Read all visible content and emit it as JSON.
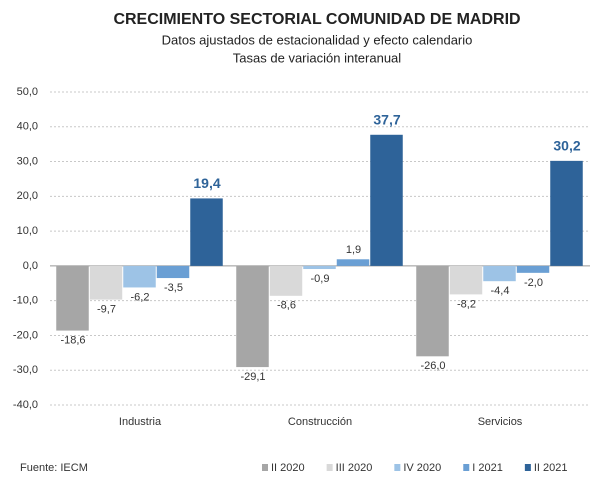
{
  "chart_data": {
    "type": "bar",
    "title": "CRECIMIENTO SECTORIAL COMUNIDAD DE MADRID",
    "subtitle": [
      "Datos ajustados de estacionalidad y efecto calendario",
      "Tasas de variación interanual"
    ],
    "source": "Fuente: IECM",
    "categories": [
      "Industria",
      "Construcción",
      "Servicios"
    ],
    "series": [
      {
        "name": "II 2020",
        "color": "#a6a6a6",
        "values": [
          -18.6,
          -29.1,
          -26.0
        ],
        "value_labels": [
          "-18,6",
          "-29,1",
          "-26,0"
        ]
      },
      {
        "name": "III 2020",
        "color": "#d9d9d9",
        "values": [
          -9.7,
          -8.6,
          -8.2
        ],
        "value_labels": [
          "-9,7",
          "-8,6",
          "-8,2"
        ]
      },
      {
        "name": "IV 2020",
        "color": "#9dc3e6",
        "values": [
          -6.2,
          -0.9,
          -4.4
        ],
        "value_labels": [
          "-6,2",
          "-0,9",
          "-4,4"
        ]
      },
      {
        "name": "I 2021",
        "color": "#6a9fd4",
        "values": [
          -3.5,
          1.9,
          -2.0
        ],
        "value_labels": [
          "-3,5",
          "1,9",
          "-2,0"
        ]
      },
      {
        "name": "II 2021",
        "color": "#2e6399",
        "values": [
          19.4,
          37.7,
          30.2
        ],
        "value_labels": [
          "19,4",
          "37,7",
          "30,2"
        ]
      }
    ],
    "ylim": [
      -40,
      50
    ],
    "yticks": [
      {
        "value": -40,
        "label": "-40,0"
      },
      {
        "value": -30,
        "label": "-30,0"
      },
      {
        "value": -20,
        "label": "-20,0"
      },
      {
        "value": -10,
        "label": "-10,0"
      },
      {
        "value": 0,
        "label": "0,0"
      },
      {
        "value": 10,
        "label": "10,0"
      },
      {
        "value": 20,
        "label": "20,0"
      },
      {
        "value": 30,
        "label": "30,0"
      },
      {
        "value": 40,
        "label": "40,0"
      },
      {
        "value": 50,
        "label": "50,0"
      }
    ],
    "grid": true,
    "legend": "bottom-right"
  }
}
